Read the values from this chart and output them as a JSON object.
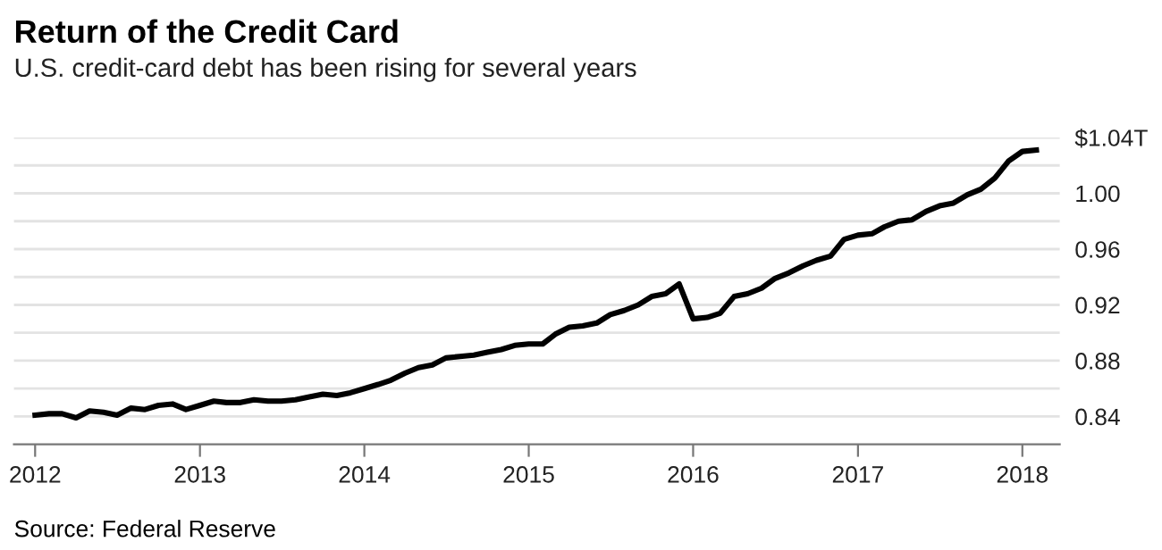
{
  "chart_data": {
    "type": "line",
    "title": "Return of the Credit Card",
    "subtitle": "U.S. credit-card debt has been rising for several years",
    "annotations": [
      "Source: Federal Reserve"
    ],
    "x": [
      "2012-01",
      "2012-02",
      "2012-03",
      "2012-04",
      "2012-05",
      "2012-06",
      "2012-07",
      "2012-08",
      "2012-09",
      "2012-10",
      "2012-11",
      "2012-12",
      "2013-01",
      "2013-02",
      "2013-03",
      "2013-04",
      "2013-05",
      "2013-06",
      "2013-07",
      "2013-08",
      "2013-09",
      "2013-10",
      "2013-11",
      "2013-12",
      "2014-01",
      "2014-02",
      "2014-03",
      "2014-04",
      "2014-05",
      "2014-06",
      "2014-07",
      "2014-08",
      "2014-09",
      "2014-10",
      "2014-11",
      "2014-12",
      "2015-01",
      "2015-02",
      "2015-03",
      "2015-04",
      "2015-05",
      "2015-06",
      "2015-07",
      "2015-08",
      "2015-09",
      "2015-10",
      "2015-11",
      "2015-12",
      "2016-01",
      "2016-02",
      "2016-03",
      "2016-04",
      "2016-05",
      "2016-06",
      "2016-07",
      "2016-08",
      "2016-09",
      "2016-10",
      "2016-11",
      "2016-12",
      "2017-01",
      "2017-02",
      "2017-03",
      "2017-04",
      "2017-05",
      "2017-06",
      "2017-07",
      "2017-08",
      "2017-09",
      "2017-10",
      "2017-11",
      "2017-12",
      "2018-01",
      "2018-02"
    ],
    "series": [
      {
        "color": "#000000",
        "values": [
          0.841,
          0.842,
          0.842,
          0.839,
          0.844,
          0.843,
          0.841,
          0.846,
          0.845,
          0.848,
          0.849,
          0.845,
          0.848,
          0.851,
          0.85,
          0.85,
          0.852,
          0.851,
          0.851,
          0.852,
          0.854,
          0.856,
          0.855,
          0.857,
          0.86,
          0.863,
          0.866,
          0.871,
          0.875,
          0.877,
          0.882,
          0.883,
          0.884,
          0.886,
          0.888,
          0.891,
          0.892,
          0.892,
          0.899,
          0.904,
          0.905,
          0.907,
          0.913,
          0.916,
          0.92,
          0.926,
          0.928,
          0.935,
          0.91,
          0.911,
          0.914,
          0.926,
          0.928,
          0.932,
          0.939,
          0.943,
          0.948,
          0.952,
          0.955,
          0.967,
          0.97,
          0.971,
          0.976,
          0.98,
          0.981,
          0.987,
          0.991,
          0.993,
          0.999,
          1.003,
          1.011,
          1.023,
          1.03,
          1.031
        ]
      }
    ],
    "xlim": [
      "2011-11-15",
      "2018-03-25"
    ],
    "xticks": [
      {
        "value": "2012-01-01",
        "label": "2012"
      },
      {
        "value": "2013-01-01",
        "label": "2013"
      },
      {
        "value": "2014-01-01",
        "label": "2014"
      },
      {
        "value": "2015-01-01",
        "label": "2015"
      },
      {
        "value": "2016-01-01",
        "label": "2016"
      },
      {
        "value": "2017-01-01",
        "label": "2017"
      },
      {
        "value": "2018-01-01",
        "label": "2018"
      }
    ],
    "ylim": [
      0.82,
      1.04
    ],
    "yticks": [
      {
        "value": 0.84,
        "label": "0.84"
      },
      {
        "value": 0.86,
        "label": null
      },
      {
        "value": 0.88,
        "label": "0.88"
      },
      {
        "value": 0.9,
        "label": null
      },
      {
        "value": 0.92,
        "label": "0.92"
      },
      {
        "value": 0.94,
        "label": null
      },
      {
        "value": 0.96,
        "label": "0.96"
      },
      {
        "value": 0.98,
        "label": null
      },
      {
        "value": 1.0,
        "label": "1.00"
      },
      {
        "value": 1.02,
        "label": null
      },
      {
        "value": 1.04,
        "label": "$1.04T"
      }
    ],
    "grid": "y",
    "marker": "none",
    "line_style": "solid"
  }
}
